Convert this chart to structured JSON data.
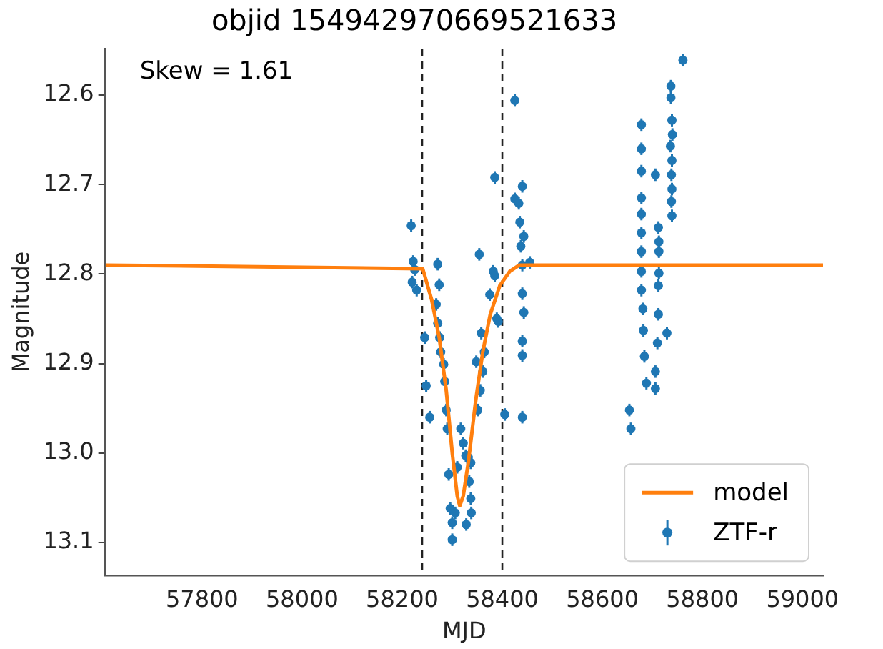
{
  "chart_data": {
    "type": "scatter",
    "title": "objid 154942970669521633",
    "xlabel": "MJD",
    "ylabel": "Magnitude",
    "annotations": [
      "Skew = 1.61"
    ],
    "xlim": [
      57607,
      59041
    ],
    "xticks": [
      57800,
      58000,
      58200,
      58400,
      58600,
      58800,
      59000
    ],
    "ylim": [
      13.137,
      12.548
    ],
    "yticks": [
      12.6,
      12.7,
      12.8,
      12.9,
      {
        "value": 13,
        "label": "13.0"
      },
      13.1
    ],
    "grid": false,
    "legend": "bottom right",
    "marker": "circle",
    "ref_lines": [
      {
        "axis": "x",
        "value": 58240,
        "color": "#222222",
        "line_style": "dashed"
      },
      {
        "axis": "x",
        "value": 58400,
        "color": "#222222",
        "line_style": "dashed"
      }
    ],
    "series": [
      {
        "name": "model",
        "type": "line",
        "color": "#ff7f0e",
        "marker": "none",
        "line_style": "solid",
        "x": [
          57607,
          58241,
          58259,
          58274,
          58288,
          58300,
          58310,
          58315,
          58322,
          58332,
          58347,
          58361,
          58376,
          58395,
          58415,
          58434,
          59041
        ],
        "values": [
          12.79,
          12.794,
          12.829,
          12.871,
          12.93,
          13.0,
          13.048,
          13.059,
          13.048,
          13.011,
          12.941,
          12.887,
          12.845,
          12.813,
          12.797,
          12.79,
          12.79
        ]
      },
      {
        "name": "ZTF-r",
        "color": "#1f77b4",
        "errors": [
          0.007,
          0.007,
          0.007,
          0.007,
          0.007,
          0.007,
          0.007,
          0.007,
          0.007,
          0.007,
          0.007,
          0.007,
          0.007,
          0.007,
          0.007,
          0.007,
          0.007,
          0.007,
          0.007,
          0.007,
          0.007,
          0.007,
          0.007,
          0.007,
          0.007,
          0.007,
          0.007,
          0.007,
          0.007,
          0.007,
          0.007,
          0.007,
          0.007,
          0.007,
          0.007,
          0.007,
          0.007,
          0.007,
          0.007,
          0.007,
          0.007,
          0.007,
          0.007,
          0.007,
          0.007,
          0.007,
          0.007,
          0.007,
          0.007,
          0.007,
          0.007,
          0.007,
          0.007,
          0.007,
          0.007,
          0.007,
          0.007,
          0.007,
          0.007,
          0.007,
          0.007,
          0.007,
          0.007,
          0.007,
          0.007,
          0.007,
          0.007,
          0.007,
          0.007,
          0.007,
          0.007,
          0.007,
          0.007,
          0.007,
          0.007,
          0.007,
          0.007,
          0.007,
          0.007,
          0.007,
          0.007,
          0.007,
          0.007,
          0.007,
          0.007,
          0.007,
          0.007,
          0.007,
          0.007,
          0.007,
          0.007,
          0.007,
          0.007,
          0.007,
          0.007,
          0.007,
          0.007,
          0.007
        ],
        "x": [
          58218,
          58222,
          58225,
          58220,
          58229,
          58245,
          58248,
          58255,
          58271,
          58274,
          58268,
          58271,
          58275,
          58277,
          58283,
          58285,
          58288,
          58290,
          58293,
          58296,
          58300,
          58300,
          58306,
          58310,
          58317,
          58322,
          58327,
          58332,
          58337,
          58337,
          58338,
          58328,
          58334,
          58351,
          58356,
          58361,
          58364,
          58358,
          58354,
          58348,
          58375,
          58382,
          58385,
          58389,
          58392,
          58385,
          58405,
          58425,
          58425,
          58433,
          58440,
          58435,
          58437,
          58440,
          58440,
          58443,
          58440,
          58440,
          58440,
          58455,
          58443,
          58678,
          58678,
          58678,
          58678,
          58678,
          58678,
          58678,
          58678,
          58678,
          58681,
          58682,
          58684,
          58688,
          58654,
          58657,
          58706,
          58706,
          58710,
          58712,
          58712,
          58713,
          58712,
          58713,
          58706,
          58713,
          58729,
          58761,
          58737,
          58737,
          58739,
          58740,
          58736,
          58739,
          58738,
          58739,
          58738,
          58739
        ],
        "values": [
          12.746,
          12.786,
          12.795,
          12.809,
          12.818,
          12.871,
          12.925,
          12.96,
          12.789,
          12.812,
          12.834,
          12.855,
          12.871,
          12.887,
          12.901,
          12.92,
          12.952,
          12.973,
          13.024,
          13.062,
          13.078,
          13.097,
          13.067,
          13.016,
          12.973,
          12.989,
          13.003,
          13.005,
          13.011,
          13.051,
          13.067,
          13.08,
          13.032,
          12.952,
          12.93,
          12.909,
          12.887,
          12.866,
          12.778,
          12.898,
          12.823,
          12.797,
          12.802,
          12.85,
          12.853,
          12.692,
          12.957,
          12.606,
          12.716,
          12.721,
          12.702,
          12.742,
          12.769,
          12.79,
          12.822,
          12.843,
          12.875,
          12.891,
          12.96,
          12.787,
          12.758,
          12.633,
          12.66,
          12.685,
          12.715,
          12.733,
          12.754,
          12.775,
          12.797,
          12.818,
          12.839,
          12.863,
          12.892,
          12.922,
          12.952,
          12.973,
          12.928,
          12.909,
          12.877,
          12.845,
          12.813,
          12.775,
          12.748,
          12.764,
          12.689,
          12.799,
          12.866,
          12.561,
          12.59,
          12.603,
          12.628,
          12.644,
          12.657,
          12.673,
          12.689,
          12.705,
          12.719,
          12.735
        ]
      }
    ]
  }
}
